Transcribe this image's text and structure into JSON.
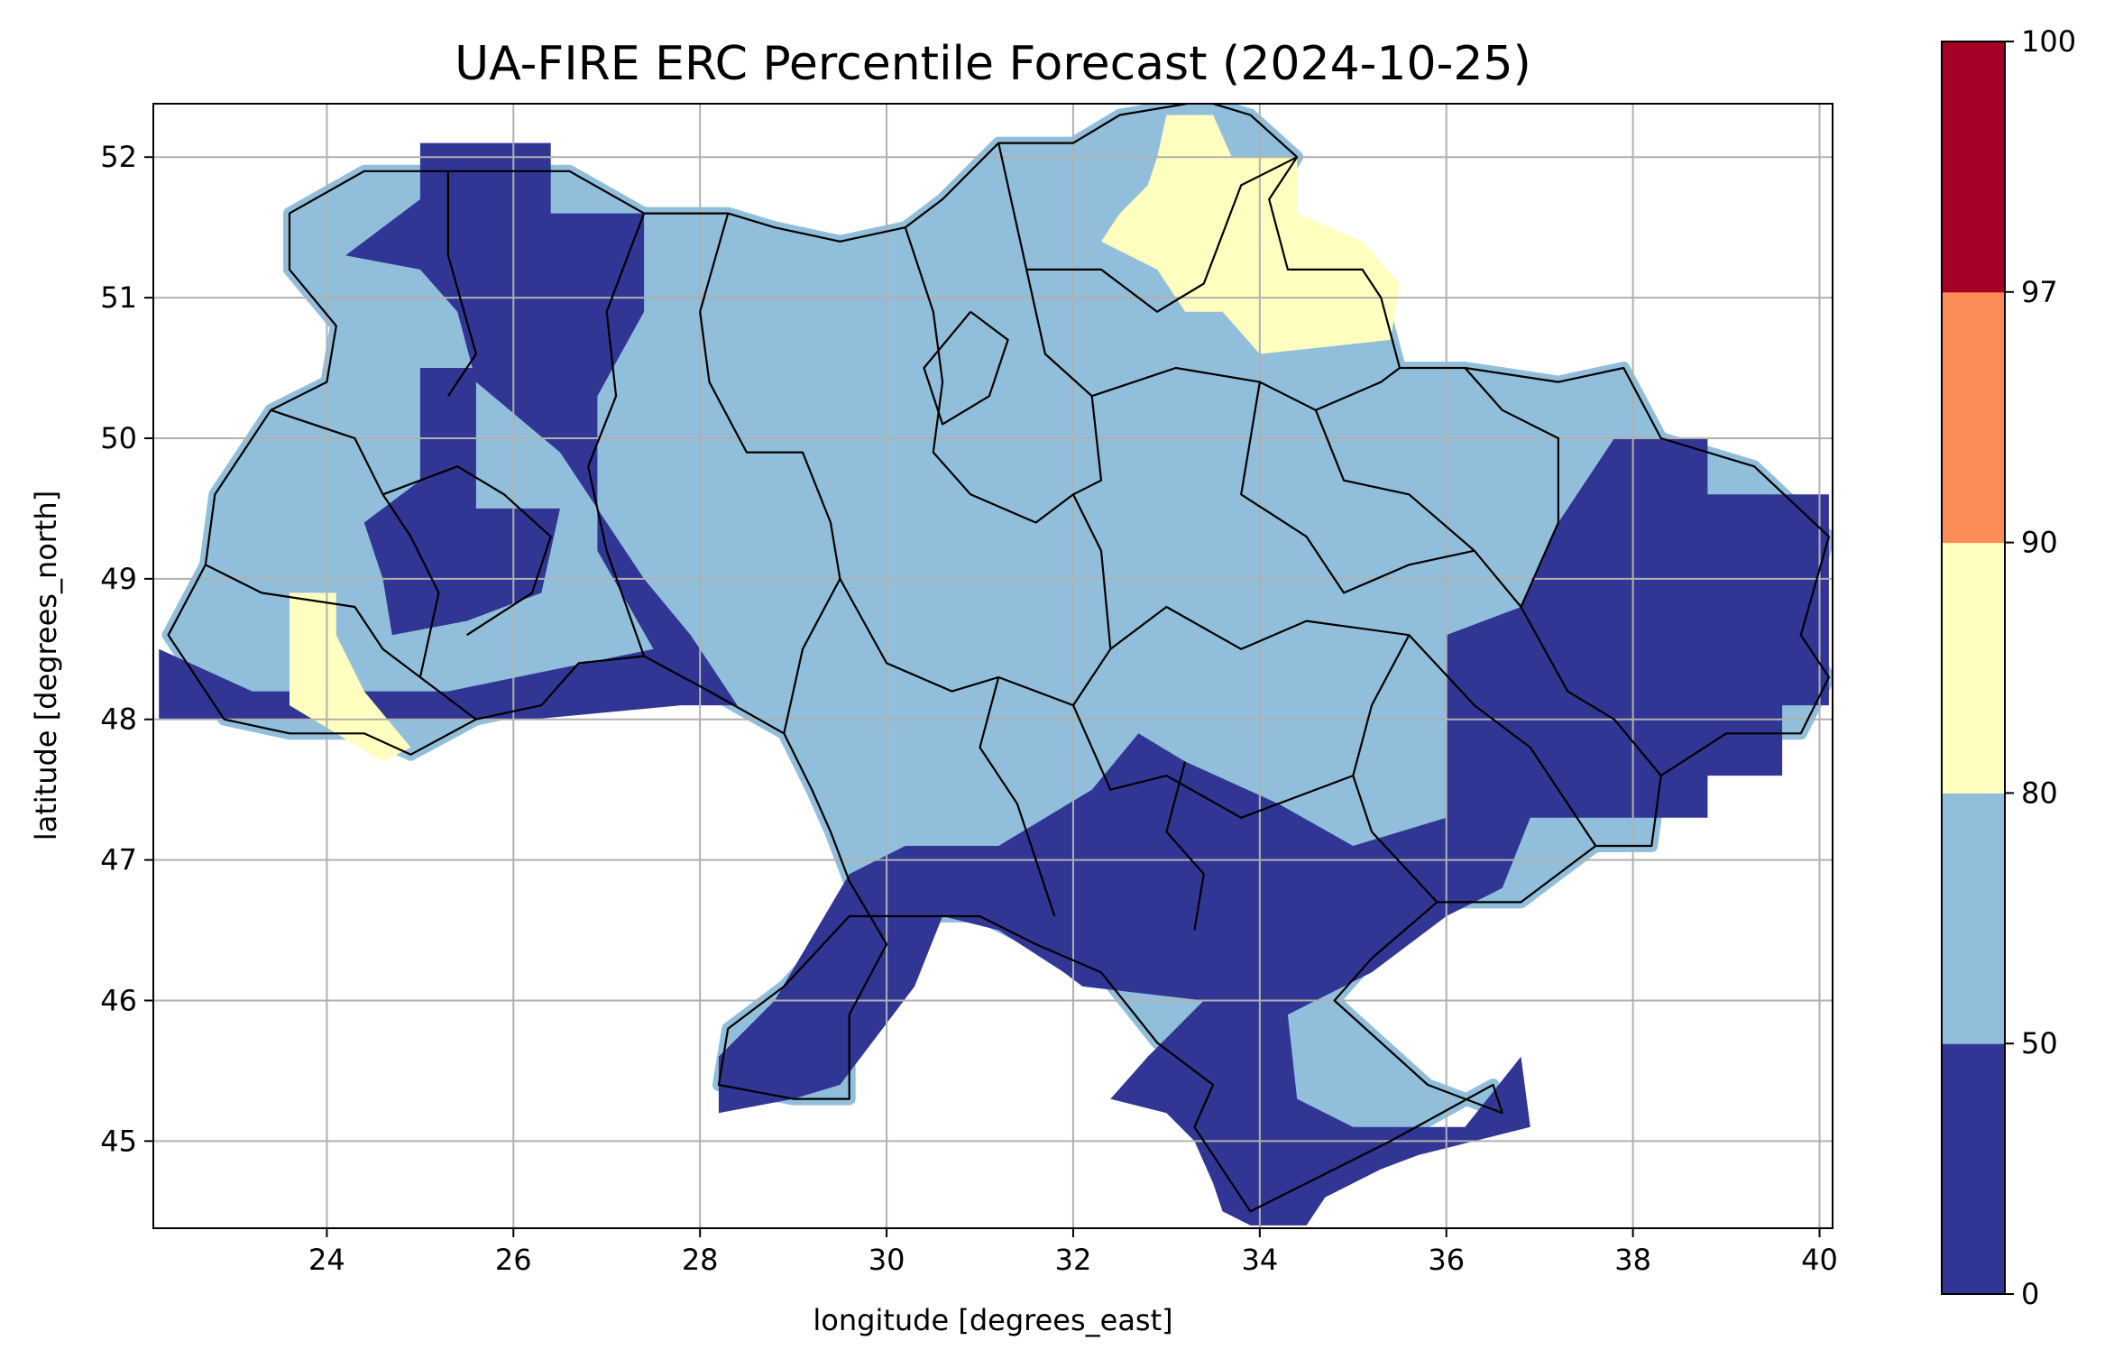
{
  "chart_data": {
    "type": "heatmap",
    "title": "UA-FIRE ERC Percentile Forecast (2024-10-25)",
    "xlabel": "longitude [degrees_east]",
    "ylabel": "latitude [degrees_north]",
    "xlim": [
      22.14,
      40.14
    ],
    "ylim": [
      44.38,
      52.38
    ],
    "grid": true,
    "x_ticks": [
      24,
      26,
      28,
      30,
      32,
      34,
      36,
      38,
      40
    ],
    "y_ticks": [
      45,
      46,
      47,
      48,
      49,
      50,
      51,
      52
    ],
    "colorbar": {
      "bounds": [
        0,
        50,
        80,
        90,
        97,
        100
      ],
      "colors": [
        "#313695",
        "#91bfdb",
        "#ffffbf",
        "#fc8d59",
        "#a50026"
      ],
      "tick_labels": [
        "0",
        "50",
        "80",
        "90",
        "97",
        "100"
      ]
    },
    "regions": [
      {
        "class_range": [
          0,
          50
        ],
        "color": "#313695",
        "polygons": [
          [
            [
              25.0,
              52.1
            ],
            [
              26.4,
              52.1
            ],
            [
              26.4,
              51.6
            ],
            [
              27.4,
              51.6
            ],
            [
              27.4,
              50.9
            ],
            [
              26.9,
              50.3
            ],
            [
              26.9,
              49.2
            ],
            [
              27.5,
              48.5
            ],
            [
              25.3,
              48.2
            ],
            [
              23.2,
              48.2
            ],
            [
              22.2,
              48.5
            ],
            [
              22.2,
              48.0
            ],
            [
              26.2,
              48.0
            ],
            [
              27.8,
              48.1
            ],
            [
              28.4,
              48.1
            ],
            [
              27.9,
              48.6
            ],
            [
              27.4,
              49.0
            ],
            [
              26.5,
              49.9
            ],
            [
              25.6,
              50.4
            ],
            [
              25.4,
              50.9
            ],
            [
              25.0,
              51.2
            ],
            [
              24.2,
              51.3
            ],
            [
              25.0,
              51.7
            ]
          ],
          [
            [
              25.0,
              50.5
            ],
            [
              25.6,
              50.5
            ],
            [
              25.6,
              49.5
            ],
            [
              26.5,
              49.5
            ],
            [
              26.3,
              48.9
            ],
            [
              25.5,
              48.7
            ],
            [
              24.7,
              48.6
            ],
            [
              24.6,
              49.0
            ],
            [
              24.4,
              49.4
            ],
            [
              25.0,
              49.7
            ]
          ],
          [
            [
              38.2,
              50.0
            ],
            [
              38.8,
              50.0
            ],
            [
              38.8,
              49.6
            ],
            [
              40.1,
              49.6
            ],
            [
              40.1,
              48.1
            ],
            [
              39.6,
              48.1
            ],
            [
              39.6,
              47.6
            ],
            [
              38.8,
              47.6
            ],
            [
              38.8,
              47.3
            ],
            [
              36.9,
              47.3
            ],
            [
              36.6,
              46.8
            ],
            [
              36.0,
              46.6
            ],
            [
              35.2,
              46.2
            ],
            [
              34.3,
              45.9
            ],
            [
              34.4,
              45.3
            ],
            [
              35.0,
              45.1
            ],
            [
              36.2,
              45.1
            ],
            [
              36.8,
              45.6
            ],
            [
              36.9,
              45.1
            ],
            [
              35.7,
              44.9
            ],
            [
              35.3,
              44.8
            ],
            [
              34.7,
              44.6
            ],
            [
              34.5,
              44.4
            ],
            [
              33.9,
              44.4
            ],
            [
              33.6,
              44.5
            ],
            [
              33.5,
              44.7
            ],
            [
              33.3,
              45.0
            ],
            [
              33.0,
              45.2
            ],
            [
              32.4,
              45.3
            ],
            [
              32.8,
              45.6
            ],
            [
              33.4,
              46.0
            ],
            [
              32.1,
              46.1
            ],
            [
              31.9,
              46.2
            ],
            [
              31.2,
              46.5
            ],
            [
              30.6,
              46.6
            ],
            [
              30.3,
              46.1
            ],
            [
              29.5,
              45.4
            ],
            [
              29.0,
              45.3
            ],
            [
              28.2,
              45.2
            ],
            [
              28.2,
              45.6
            ],
            [
              28.8,
              46.0
            ],
            [
              29.6,
              46.9
            ],
            [
              30.2,
              47.1
            ],
            [
              31.2,
              47.1
            ],
            [
              32.2,
              47.5
            ],
            [
              32.7,
              47.9
            ],
            [
              33.2,
              47.7
            ],
            [
              34.2,
              47.4
            ],
            [
              35.0,
              47.1
            ],
            [
              36.0,
              47.3
            ],
            [
              36.0,
              48.6
            ],
            [
              36.8,
              48.8
            ],
            [
              37.2,
              49.4
            ],
            [
              37.8,
              50.0
            ]
          ]
        ]
      },
      {
        "class_range": [
          80,
          90
        ],
        "color": "#ffffbf",
        "polygons": [
          [
            [
              33.0,
              52.3
            ],
            [
              33.5,
              52.3
            ],
            [
              33.7,
              52.0
            ],
            [
              34.4,
              52.0
            ],
            [
              34.4,
              51.6
            ],
            [
              35.1,
              51.4
            ],
            [
              35.5,
              51.1
            ],
            [
              35.4,
              50.7
            ],
            [
              34.0,
              50.6
            ],
            [
              33.6,
              50.9
            ],
            [
              33.2,
              50.9
            ],
            [
              32.9,
              51.2
            ],
            [
              32.3,
              51.4
            ],
            [
              32.5,
              51.6
            ],
            [
              32.8,
              51.8
            ],
            [
              32.9,
              52.0
            ]
          ],
          [
            [
              23.6,
              48.9
            ],
            [
              24.1,
              48.9
            ],
            [
              24.1,
              48.6
            ],
            [
              24.4,
              48.2
            ],
            [
              24.9,
              47.8
            ],
            [
              24.6,
              47.7
            ],
            [
              24.1,
              47.9
            ],
            [
              23.6,
              48.1
            ],
            [
              23.6,
              48.4
            ]
          ]
        ]
      }
    ],
    "borders": [
      [
        [
          22.6,
          48.3
        ],
        [
          22.9,
          48.0
        ],
        [
          23.6,
          47.9
        ],
        [
          24.4,
          47.9
        ],
        [
          24.9,
          47.75
        ],
        [
          25.6,
          48.0
        ],
        [
          26.3,
          48.1
        ],
        [
          26.7,
          48.4
        ],
        [
          27.4,
          48.45
        ],
        [
          28.1,
          48.2
        ],
        [
          28.9,
          47.9
        ],
        [
          29.2,
          47.5
        ],
        [
          29.4,
          47.2
        ],
        [
          29.6,
          46.85
        ],
        [
          30.0,
          46.4
        ],
        [
          29.6,
          45.9
        ],
        [
          29.6,
          45.3
        ],
        [
          29.0,
          45.3
        ],
        [
          28.2,
          45.4
        ],
        [
          28.3,
          45.8
        ],
        [
          28.9,
          46.1
        ],
        [
          29.6,
          46.6
        ],
        [
          30.3,
          46.6
        ],
        [
          31.0,
          46.6
        ],
        [
          31.6,
          46.4
        ],
        [
          32.3,
          46.2
        ],
        [
          32.9,
          45.7
        ],
        [
          33.5,
          45.4
        ],
        [
          33.3,
          45.1
        ],
        [
          33.9,
          44.5
        ],
        [
          34.5,
          44.7
        ],
        [
          35.4,
          45.0
        ],
        [
          36.5,
          45.4
        ],
        [
          36.6,
          45.2
        ],
        [
          35.8,
          45.4
        ],
        [
          34.8,
          46.0
        ],
        [
          35.2,
          46.3
        ],
        [
          35.9,
          46.7
        ],
        [
          36.8,
          46.7
        ],
        [
          37.6,
          47.1
        ],
        [
          38.2,
          47.1
        ],
        [
          38.3,
          47.6
        ],
        [
          39.0,
          47.9
        ],
        [
          39.8,
          47.9
        ],
        [
          40.1,
          48.3
        ],
        [
          39.8,
          48.6
        ],
        [
          40.1,
          49.3
        ],
        [
          39.3,
          49.8
        ],
        [
          38.3,
          50.0
        ],
        [
          37.9,
          50.5
        ],
        [
          37.2,
          50.4
        ],
        [
          36.2,
          50.5
        ],
        [
          35.5,
          50.5
        ],
        [
          35.3,
          51.0
        ],
        [
          35.1,
          51.2
        ],
        [
          34.3,
          51.2
        ],
        [
          34.1,
          51.7
        ],
        [
          34.4,
          52.0
        ],
        [
          33.9,
          52.3
        ],
        [
          33.4,
          52.4
        ],
        [
          32.5,
          52.3
        ],
        [
          32.0,
          52.1
        ],
        [
          31.2,
          52.1
        ],
        [
          30.6,
          51.7
        ],
        [
          30.2,
          51.5
        ],
        [
          29.5,
          51.4
        ],
        [
          28.8,
          51.5
        ],
        [
          28.3,
          51.6
        ],
        [
          27.4,
          51.6
        ],
        [
          26.6,
          51.9
        ],
        [
          25.3,
          51.9
        ],
        [
          24.4,
          51.9
        ],
        [
          23.6,
          51.6
        ],
        [
          23.6,
          51.2
        ],
        [
          24.1,
          50.8
        ],
        [
          24.0,
          50.4
        ],
        [
          23.4,
          50.2
        ],
        [
          22.8,
          49.6
        ],
        [
          22.7,
          49.1
        ],
        [
          22.3,
          48.6
        ],
        [
          22.6,
          48.3
        ]
      ],
      [
        [
          25.3,
          51.9
        ],
        [
          25.3,
          51.3
        ],
        [
          25.6,
          50.6
        ],
        [
          25.3,
          50.3
        ]
      ],
      [
        [
          27.4,
          51.6
        ],
        [
          27.0,
          50.9
        ],
        [
          27.1,
          50.3
        ],
        [
          26.8,
          49.8
        ],
        [
          27.0,
          49.2
        ],
        [
          27.4,
          48.45
        ]
      ],
      [
        [
          28.3,
          51.6
        ],
        [
          28.0,
          50.9
        ],
        [
          28.1,
          50.4
        ],
        [
          28.5,
          49.9
        ],
        [
          29.1,
          49.9
        ],
        [
          29.4,
          49.4
        ],
        [
          29.5,
          49.0
        ],
        [
          29.1,
          48.5
        ],
        [
          28.9,
          47.9
        ]
      ],
      [
        [
          30.2,
          51.5
        ],
        [
          30.5,
          50.9
        ],
        [
          30.6,
          50.4
        ],
        [
          30.5,
          49.9
        ],
        [
          30.9,
          49.6
        ],
        [
          31.6,
          49.4
        ],
        [
          32.0,
          49.6
        ],
        [
          32.3,
          49.2
        ],
        [
          32.4,
          48.5
        ],
        [
          32.0,
          48.1
        ],
        [
          31.2,
          48.3
        ],
        [
          30.7,
          48.2
        ],
        [
          30.0,
          48.4
        ],
        [
          29.5,
          49.0
        ]
      ],
      [
        [
          31.2,
          52.1
        ],
        [
          31.5,
          51.2
        ],
        [
          32.3,
          51.2
        ],
        [
          32.9,
          50.9
        ],
        [
          33.4,
          51.1
        ],
        [
          33.8,
          51.8
        ],
        [
          34.4,
          52.0
        ]
      ],
      [
        [
          31.5,
          51.2
        ],
        [
          31.7,
          50.6
        ],
        [
          32.2,
          50.3
        ],
        [
          32.3,
          49.7
        ],
        [
          32.0,
          49.6
        ]
      ],
      [
        [
          32.2,
          50.3
        ],
        [
          33.1,
          50.5
        ],
        [
          34.0,
          50.4
        ],
        [
          34.6,
          50.2
        ],
        [
          35.3,
          50.4
        ],
        [
          35.5,
          50.5
        ]
      ],
      [
        [
          34.0,
          50.4
        ],
        [
          33.8,
          49.6
        ],
        [
          34.5,
          49.3
        ],
        [
          34.9,
          48.9
        ],
        [
          35.6,
          49.1
        ],
        [
          36.3,
          49.2
        ],
        [
          36.8,
          48.8
        ],
        [
          37.2,
          49.4
        ],
        [
          37.2,
          50.0
        ],
        [
          36.6,
          50.2
        ],
        [
          36.2,
          50.5
        ]
      ],
      [
        [
          34.6,
          50.2
        ],
        [
          34.9,
          49.7
        ],
        [
          35.6,
          49.6
        ],
        [
          36.3,
          49.2
        ]
      ],
      [
        [
          32.4,
          48.5
        ],
        [
          33.0,
          48.8
        ],
        [
          33.8,
          48.5
        ],
        [
          34.5,
          48.7
        ],
        [
          35.6,
          48.6
        ],
        [
          36.3,
          48.1
        ],
        [
          36.9,
          47.8
        ],
        [
          37.6,
          47.1
        ]
      ],
      [
        [
          35.6,
          48.6
        ],
        [
          35.2,
          48.1
        ],
        [
          35.0,
          47.6
        ],
        [
          35.2,
          47.2
        ],
        [
          35.9,
          46.7
        ]
      ],
      [
        [
          36.8,
          48.8
        ],
        [
          37.3,
          48.2
        ],
        [
          37.8,
          48.0
        ],
        [
          38.3,
          47.6
        ]
      ],
      [
        [
          32.0,
          48.1
        ],
        [
          32.4,
          47.5
        ],
        [
          33.0,
          47.6
        ],
        [
          33.8,
          47.3
        ],
        [
          35.0,
          47.6
        ]
      ],
      [
        [
          31.2,
          48.3
        ],
        [
          31.0,
          47.8
        ],
        [
          31.4,
          47.4
        ],
        [
          31.6,
          47.0
        ],
        [
          31.8,
          46.6
        ]
      ],
      [
        [
          33.2,
          47.7
        ],
        [
          33.0,
          47.2
        ],
        [
          33.4,
          46.9
        ],
        [
          33.3,
          46.5
        ]
      ],
      [
        [
          22.7,
          49.1
        ],
        [
          23.3,
          48.9
        ],
        [
          24.3,
          48.8
        ],
        [
          24.6,
          48.5
        ],
        [
          25.0,
          48.3
        ],
        [
          25.6,
          48.0
        ]
      ],
      [
        [
          23.4,
          50.2
        ],
        [
          24.3,
          50.0
        ],
        [
          24.6,
          49.6
        ],
        [
          24.9,
          49.3
        ],
        [
          25.2,
          48.9
        ],
        [
          25.0,
          48.3
        ]
      ],
      [
        [
          24.6,
          49.6
        ],
        [
          25.4,
          49.8
        ],
        [
          25.9,
          49.6
        ],
        [
          26.4,
          49.3
        ],
        [
          26.2,
          48.9
        ],
        [
          25.5,
          48.6
        ]
      ],
      [
        [
          30.9,
          50.9
        ],
        [
          30.4,
          50.5
        ],
        [
          30.6,
          50.1
        ],
        [
          31.1,
          50.3
        ],
        [
          31.3,
          50.7
        ],
        [
          30.9,
          50.9
        ]
      ]
    ]
  }
}
